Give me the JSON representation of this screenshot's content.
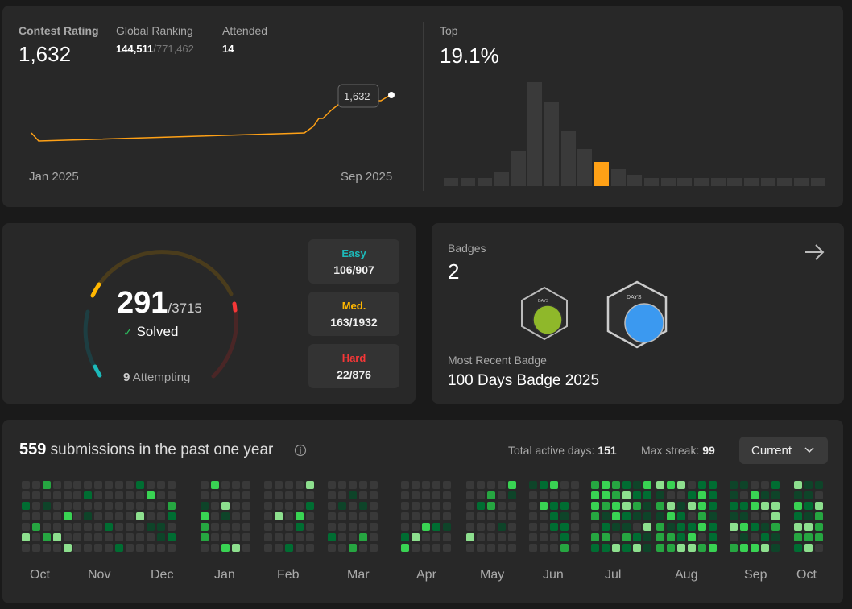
{
  "contest": {
    "rating_label": "Contest Rating",
    "rating_value": "1,632",
    "ranking_label": "Global Ranking",
    "ranking_value": "144,511",
    "ranking_total": "/771,462",
    "attended_label": "Attended",
    "attended_value": "14",
    "tooltip_value": "1,632",
    "x_start": "Jan 2025",
    "x_end": "Sep 2025",
    "line_color": "#ffa116"
  },
  "top": {
    "label": "Top",
    "value": "19.1%",
    "highlight_color": "#ffa116"
  },
  "solved": {
    "count": "291",
    "total": "/3715",
    "check": "✓",
    "solved_label": "Solved",
    "attempting_count": "9",
    "attempting_label": "Attempting",
    "easy_label": "Easy",
    "easy_value": "106/907",
    "easy_color": "#1cbaba",
    "med_label": "Med.",
    "med_value": "163/1932",
    "med_color": "#ffb700",
    "hard_label": "Hard",
    "hard_value": "22/876",
    "hard_color": "#f63737"
  },
  "badges": {
    "label": "Badges",
    "count": "2",
    "arrow_icon": "arrow-right-icon",
    "recent_label": "Most Recent Badge",
    "recent_name": "100 Days Badge 2025",
    "badge_text": "DAYS"
  },
  "submissions": {
    "count": "559",
    "label": "submissions in the past one year",
    "info_icon": "info-icon",
    "active_label": "Total active days:",
    "active_value": "151",
    "streak_label": "Max streak:",
    "streak_value": "99",
    "dropdown_value": "Current",
    "months": [
      "Oct",
      "Nov",
      "Dec",
      "Jan",
      "Feb",
      "Mar",
      "Apr",
      "May",
      "Jun",
      "Jul",
      "Aug",
      "Sep",
      "Oct"
    ]
  }
}
